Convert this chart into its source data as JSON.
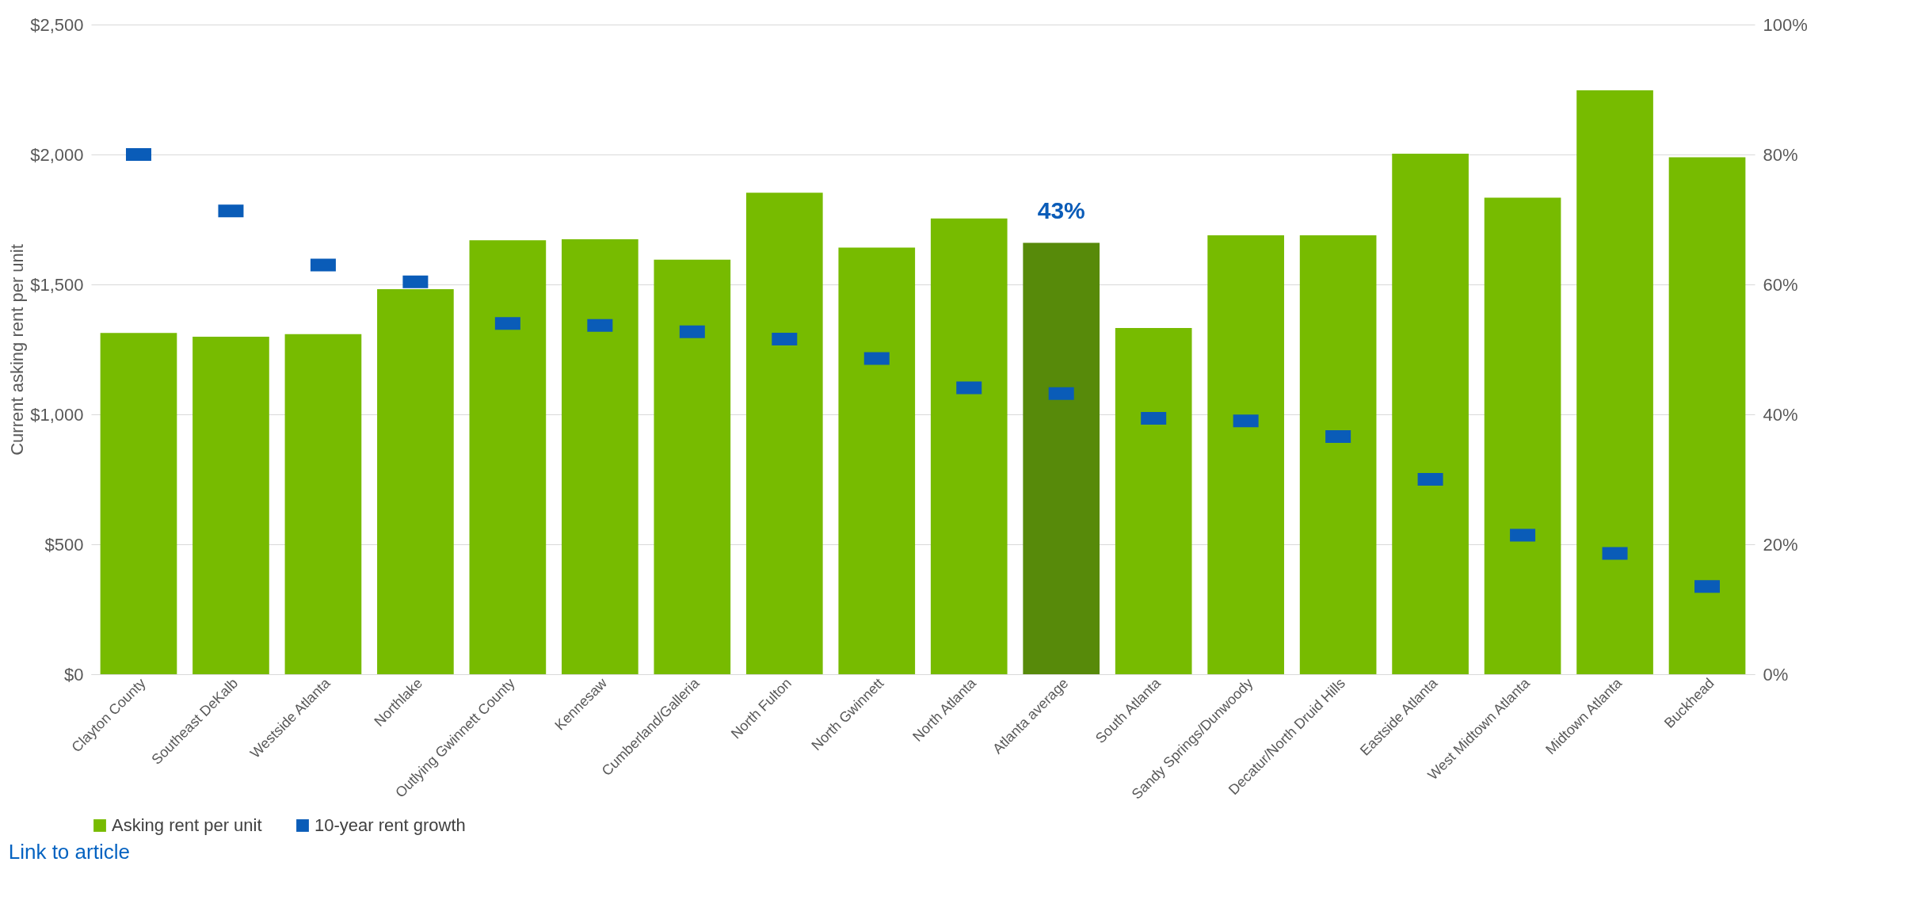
{
  "chart_data": {
    "type": "bar",
    "ylabel": "Current asking rent per unit",
    "categories": [
      "Clayton County",
      "Southeast DeKalb",
      "Westside Atlanta",
      "Northlake",
      "Outlying Gwinnett County",
      "Kennesaw",
      "Cumberland/Galleria",
      "North Fulton",
      "North Gwinnett",
      "North Atlanta",
      "Atlanta average",
      "South Atlanta",
      "Sandy Springs/Dunwoody",
      "Decatur/North Druid Hills",
      "Eastside Atlanta",
      "West Midtown Atlanta",
      "Midtown Atlanta",
      "Buckhead"
    ],
    "series": [
      {
        "name": "Asking rent per unit",
        "color": "#77bb00",
        "colors": [
          "#77bb00",
          "#77bb00",
          "#77bb00",
          "#77bb00",
          "#77bb00",
          "#77bb00",
          "#77bb00",
          "#77bb00",
          "#77bb00",
          "#77bb00",
          "#578a0a",
          "#77bb00",
          "#77bb00",
          "#77bb00",
          "#77bb00",
          "#77bb00",
          "#77bb00",
          "#77bb00"
        ],
        "values": [
          1313,
          1299,
          1309,
          1482,
          1670,
          1674,
          1595,
          1853,
          1642,
          1754,
          1660,
          1332,
          1689,
          1689,
          2003,
          1834,
          2247,
          1989
        ]
      },
      {
        "name": "10-year rent growth",
        "type": "scatter",
        "axis": "y2",
        "color": "#0a5cb8",
        "values": [
          80,
          71.3,
          63,
          60.4,
          54,
          53.7,
          52.7,
          51.6,
          48.6,
          44.1,
          43.2,
          39.4,
          39,
          36.6,
          30,
          21.4,
          18.6,
          13.5
        ]
      }
    ],
    "ylim": [
      0,
      2500
    ],
    "yticks": [
      {
        "value": 0,
        "label": "$0"
      },
      {
        "value": 500,
        "label": "$500"
      },
      {
        "value": 1000,
        "label": "$1,000"
      },
      {
        "value": 1500,
        "label": "$1,500"
      },
      {
        "value": 2000,
        "label": "$2,000"
      },
      {
        "value": 2500,
        "label": "$2,500"
      }
    ],
    "y2lim": [
      0,
      100
    ],
    "y2ticks": [
      {
        "value": 0,
        "label": "0%"
      },
      {
        "value": 20,
        "label": "20%"
      },
      {
        "value": 40,
        "label": "40%"
      },
      {
        "value": 60,
        "label": "60%"
      },
      {
        "value": 80,
        "label": "80%"
      },
      {
        "value": 100,
        "label": "100%"
      }
    ],
    "grid": "y",
    "legend": "bottom",
    "annotations": [
      {
        "text": "43%",
        "x": "Atlanta average",
        "y": 1660
      },
      "Link to article"
    ]
  }
}
